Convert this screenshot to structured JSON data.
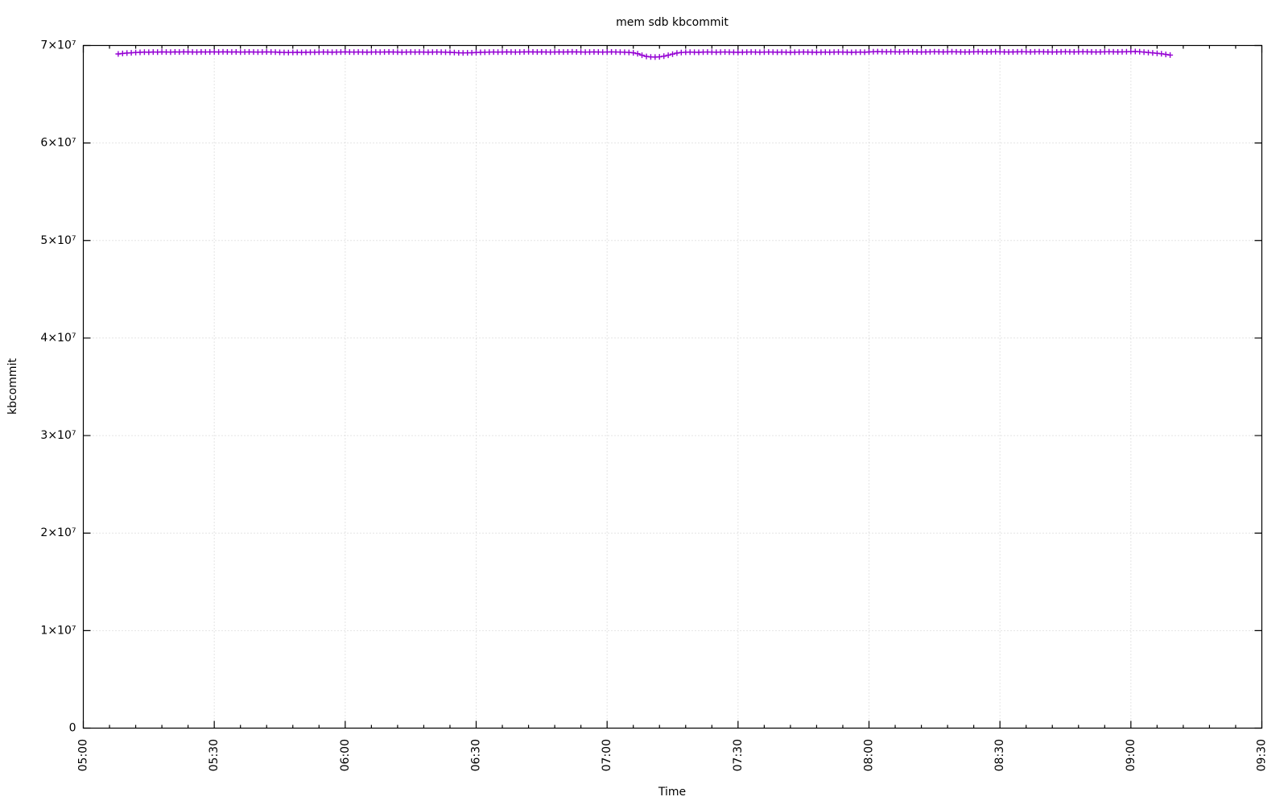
{
  "chart_data": {
    "type": "line",
    "title": "mem sdb kbcommit",
    "xlabel": "Time",
    "ylabel": "kbcommit",
    "grid": true,
    "legend": "none",
    "xlim_time": [
      "05:00",
      "09:30"
    ],
    "ylim": [
      0,
      70000000
    ],
    "x_ticks": [
      "05:00",
      "05:30",
      "06:00",
      "06:30",
      "07:00",
      "07:30",
      "08:00",
      "08:30",
      "09:00",
      "09:30"
    ],
    "x_minor_step_minutes": 6,
    "y_ticks": [
      {
        "value": 0,
        "label": "0"
      },
      {
        "value": 10000000,
        "label": "1×10⁷"
      },
      {
        "value": 20000000,
        "label": "2×10⁷"
      },
      {
        "value": 30000000,
        "label": "3×10⁷"
      },
      {
        "value": 40000000,
        "label": "4×10⁷"
      },
      {
        "value": 50000000,
        "label": "5×10⁷"
      },
      {
        "value": 60000000,
        "label": "6×10⁷"
      },
      {
        "value": 70000000,
        "label": "7×10⁷"
      }
    ],
    "series": [
      {
        "name": "kbcommit",
        "color": "#9400D3",
        "marker": "plus",
        "style": "linespoints",
        "start_time": "05:08",
        "interval_minutes": 1,
        "value_scale": 10000,
        "values": [
          6913,
          6918,
          6922,
          6925,
          6928,
          6930,
          6932,
          6931,
          6933,
          6932,
          6934,
          6933,
          6932,
          6934,
          6933,
          6935,
          6934,
          6933,
          6932,
          6934,
          6933,
          6934,
          6934,
          6933,
          6935,
          6934,
          6933,
          6934,
          6932,
          6933,
          6934,
          6933,
          6932,
          6933,
          6934,
          6933,
          6932,
          6930,
          6929,
          6928,
          6929,
          6930,
          6929,
          6930,
          6931,
          6931,
          6932,
          6933,
          6932,
          6931,
          6932,
          6933,
          6934,
          6933,
          6932,
          6933,
          6932,
          6931,
          6932,
          6933,
          6932,
          6933,
          6934,
          6933,
          6932,
          6931,
          6932,
          6933,
          6932,
          6933,
          6932,
          6931,
          6932,
          6933,
          6932,
          6931,
          6930,
          6927,
          6925,
          6924,
          6925,
          6926,
          6928,
          6930,
          6931,
          6932,
          6933,
          6932,
          6933,
          6934,
          6933,
          6932,
          6933,
          6934,
          6935,
          6934,
          6933,
          6934,
          6933,
          6932,
          6933,
          6934,
          6933,
          6934,
          6935,
          6934,
          6933,
          6932,
          6933,
          6934,
          6933,
          6932,
          6933,
          6934,
          6933,
          6932,
          6931,
          6929,
          6925,
          6916,
          6900,
          6888,
          6883,
          6881,
          6884,
          6890,
          6900,
          6912,
          6922,
          6928,
          6931,
          6932,
          6931,
          6930,
          6932,
          6933,
          6932,
          6931,
          6932,
          6933,
          6932,
          6931,
          6930,
          6931,
          6932,
          6933,
          6932,
          6931,
          6932,
          6933,
          6932,
          6931,
          6932,
          6931,
          6930,
          6931,
          6932,
          6933,
          6932,
          6931,
          6930,
          6931,
          6932,
          6931,
          6932,
          6933,
          6932,
          6931,
          6930,
          6931,
          6932,
          6931,
          6934,
          6936,
          6937,
          6936,
          6935,
          6936,
          6935,
          6934,
          6935,
          6936,
          6935,
          6934,
          6933,
          6934,
          6935,
          6936,
          6935,
          6934,
          6935,
          6936,
          6935,
          6934,
          6933,
          6934,
          6935,
          6936,
          6935,
          6934,
          6935,
          6936,
          6935,
          6934,
          6933,
          6934,
          6935,
          6936,
          6935,
          6934,
          6935,
          6936,
          6935,
          6934,
          6933,
          6934,
          6935,
          6936,
          6935,
          6934,
          6935,
          6936,
          6935,
          6934,
          6933,
          6934,
          6935,
          6936,
          6935,
          6934,
          6935,
          6936,
          6937,
          6938,
          6936,
          6932,
          6928,
          6924,
          6920,
          6915,
          6908,
          6902
        ]
      }
    ]
  }
}
